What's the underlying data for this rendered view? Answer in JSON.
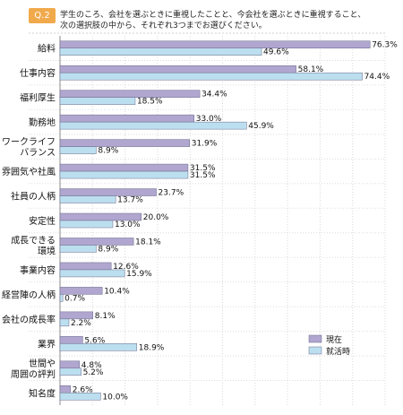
{
  "question": {
    "badge": "Q.2",
    "line1": "学生のころ、会社を選ぶときに重視したことと、今会社を選ぶときに重視すること、",
    "line2": "次の選択肢の中から、それぞれ3つまでお選びください。"
  },
  "chart_data": {
    "type": "bar",
    "orientation": "horizontal",
    "categories": [
      [
        "給料"
      ],
      [
        "仕事内容"
      ],
      [
        "福利厚生"
      ],
      [
        "勤務地"
      ],
      [
        "ワークライフ",
        "バランス"
      ],
      [
        "雰囲気や社風"
      ],
      [
        "社員の人柄"
      ],
      [
        "安定性"
      ],
      [
        "成長できる",
        "環境"
      ],
      [
        "事業内容"
      ],
      [
        "経営陣の人柄"
      ],
      [
        "会社の成長率"
      ],
      [
        "業界"
      ],
      [
        "世間や",
        "周囲の評判"
      ],
      [
        "知名度"
      ]
    ],
    "series": [
      {
        "name": "現在",
        "color": "#b0a6cf",
        "values": [
          76.3,
          58.1,
          34.4,
          33.0,
          31.9,
          31.5,
          23.7,
          20.0,
          18.1,
          12.6,
          10.4,
          8.1,
          5.6,
          4.8,
          2.6
        ],
        "labels": [
          "76.3%",
          "58.1%",
          "34.4%",
          "33.0%",
          "31.9%",
          "31.5%",
          "23.7%",
          "20.0%",
          "18.1%",
          "12.6%",
          "10.4%",
          "8.1%",
          "5.6%",
          "4.8%",
          "2.6%"
        ]
      },
      {
        "name": "就活時",
        "color": "#bcdff0",
        "values": [
          49.6,
          74.4,
          18.5,
          45.9,
          8.9,
          31.5,
          13.7,
          13.0,
          8.9,
          15.9,
          0.7,
          2.2,
          18.9,
          5.2,
          10.0
        ],
        "labels": [
          "49.6%",
          "74.4%",
          "18.5%",
          "45.9%",
          "8.9%",
          "31.5%",
          "13.7%",
          "13.0%",
          "8.9%",
          "15.9%",
          "0.7%",
          "2.2%",
          "18.9%",
          "5.2%",
          "10.0%"
        ]
      }
    ],
    "xlim": [
      0,
      80
    ],
    "grid": true,
    "legend_position": "bottom-right"
  }
}
